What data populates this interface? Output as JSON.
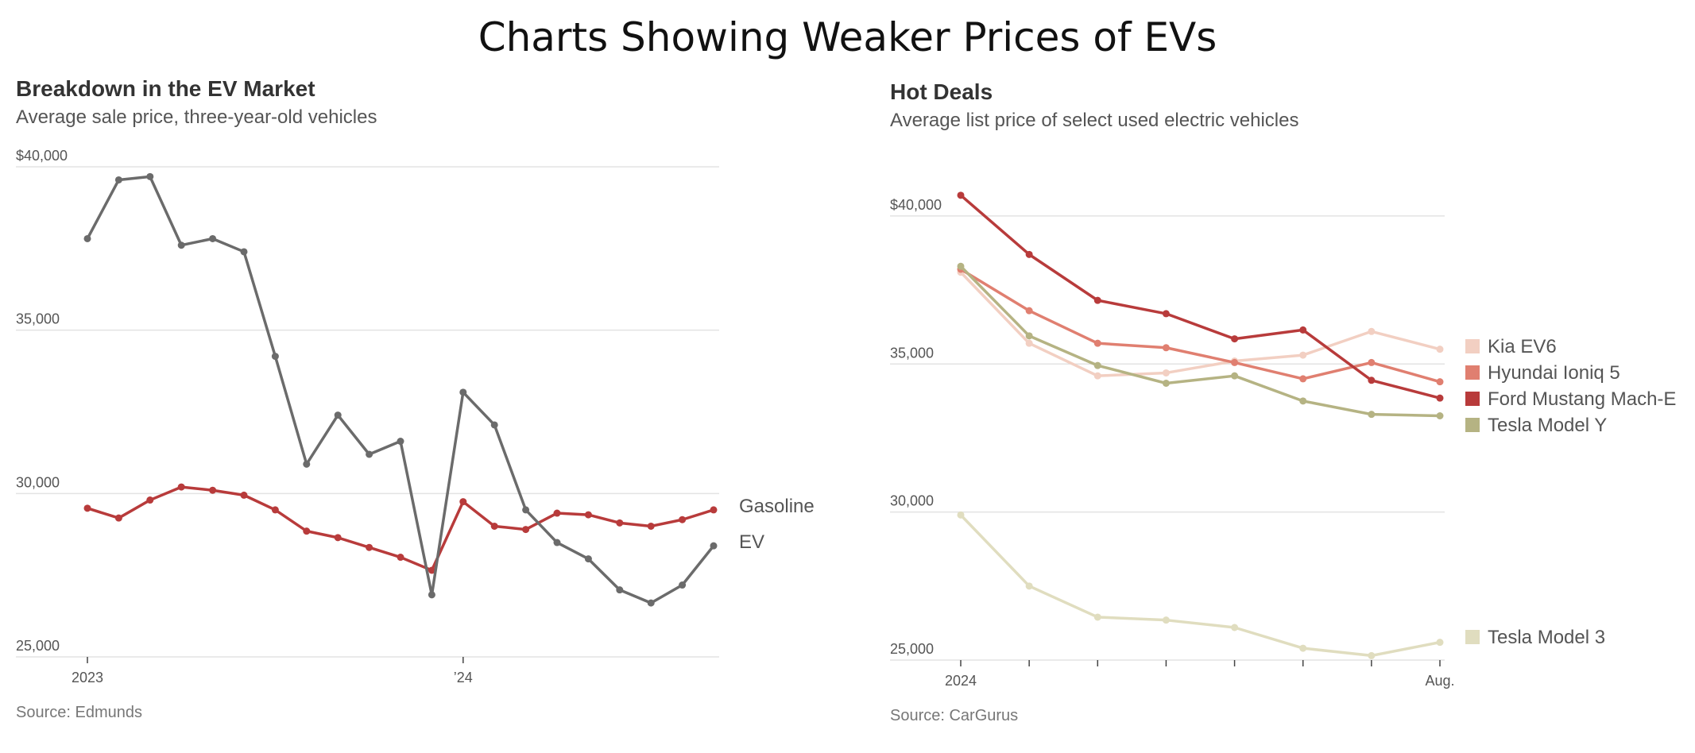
{
  "page": {
    "title": "Charts Showing Weaker Prices of EVs"
  },
  "colors": {
    "gasoline": "#b83b3b",
    "ev": "#6b6b6b",
    "grid": "#e3e3e3",
    "kia": "#f2cfc2",
    "ioniq": "#e07f70",
    "mustang": "#b83b3b",
    "modelY": "#b5b383",
    "model3": "#e0ddbf"
  },
  "chart_data": [
    {
      "type": "line",
      "title": "Breakdown in the EV Market",
      "subtitle": "Average sale price, three-year-old vehicles",
      "source": "Source: Edmunds",
      "ylim": [
        25000,
        40000
      ],
      "y_ticks": [
        25000,
        30000,
        35000,
        40000
      ],
      "y_tick_labels": [
        "25,000",
        "30,000",
        "35,000",
        "$40,000"
      ],
      "x": [
        "Jan 2023",
        "Feb 2023",
        "Mar 2023",
        "Apr 2023",
        "May 2023",
        "Jun 2023",
        "Jul 2023",
        "Aug 2023",
        "Sep 2023",
        "Oct 2023",
        "Nov 2023",
        "Dec 2023",
        "Jan 2024",
        "Feb 2024",
        "Mar 2024",
        "Apr 2024",
        "May 2024",
        "Jun 2024",
        "Jul 2024",
        "Aug 2024",
        "Sep 2024"
      ],
      "x_tick_labels": [
        {
          "at": "Jan 2023",
          "label": "2023"
        },
        {
          "at": "Jan 2024",
          "label": "’24"
        }
      ],
      "grid": true,
      "legend": "line-end labels",
      "series": [
        {
          "name": "Gasoline",
          "color_key": "gasoline",
          "values": [
            29550,
            29250,
            29800,
            30200,
            30100,
            29950,
            29500,
            28850,
            28650,
            28350,
            28050,
            27650,
            29750,
            29000,
            28900,
            29400,
            29350,
            29100,
            29000,
            29200,
            29500
          ]
        },
        {
          "name": "EV",
          "color_key": "ev",
          "values": [
            37800,
            39600,
            39700,
            37600,
            37800,
            37400,
            34200,
            30900,
            32400,
            31200,
            31600,
            26900,
            33100,
            32100,
            29500,
            28500,
            28000,
            27050,
            26650,
            27200,
            28400
          ]
        }
      ]
    },
    {
      "type": "line",
      "title": "Hot Deals",
      "subtitle": "Average list price of select used electric vehicles",
      "source": "Source: CarGurus",
      "ylim": [
        25000,
        41500
      ],
      "y_ticks": [
        25000,
        30000,
        35000,
        40000
      ],
      "y_tick_labels": [
        "25,000",
        "30,000",
        "35,000",
        "$40,000"
      ],
      "x": [
        "Jan 2024",
        "Feb 2024",
        "Mar 2024",
        "Apr 2024",
        "May 2024",
        "Jun 2024",
        "Jul 2024",
        "Aug 2024"
      ],
      "x_tick_labels": [
        {
          "at": "Jan 2024",
          "label": "2024"
        },
        {
          "at": "Aug 2024",
          "label": "Aug."
        }
      ],
      "grid": true,
      "legend": "right",
      "series": [
        {
          "name": "Kia EV6",
          "color_key": "kia",
          "values": [
            38100,
            35700,
            34600,
            34700,
            35100,
            35300,
            36100,
            35500
          ]
        },
        {
          "name": "Hyundai Ioniq 5",
          "color_key": "ioniq",
          "values": [
            38200,
            36800,
            35700,
            35550,
            35050,
            34500,
            35050,
            34400
          ]
        },
        {
          "name": "Ford Mustang Mach-E",
          "color_key": "mustang",
          "values": [
            40700,
            38700,
            37150,
            36700,
            35850,
            36150,
            34450,
            33850
          ]
        },
        {
          "name": "Tesla Model Y",
          "color_key": "modelY",
          "values": [
            38300,
            35950,
            34950,
            34350,
            34600,
            33750,
            33300,
            33250
          ]
        },
        {
          "name": "Tesla Model 3",
          "color_key": "model3",
          "values": [
            29900,
            27500,
            26450,
            26350,
            26100,
            25400,
            25150,
            25600
          ]
        }
      ]
    }
  ]
}
